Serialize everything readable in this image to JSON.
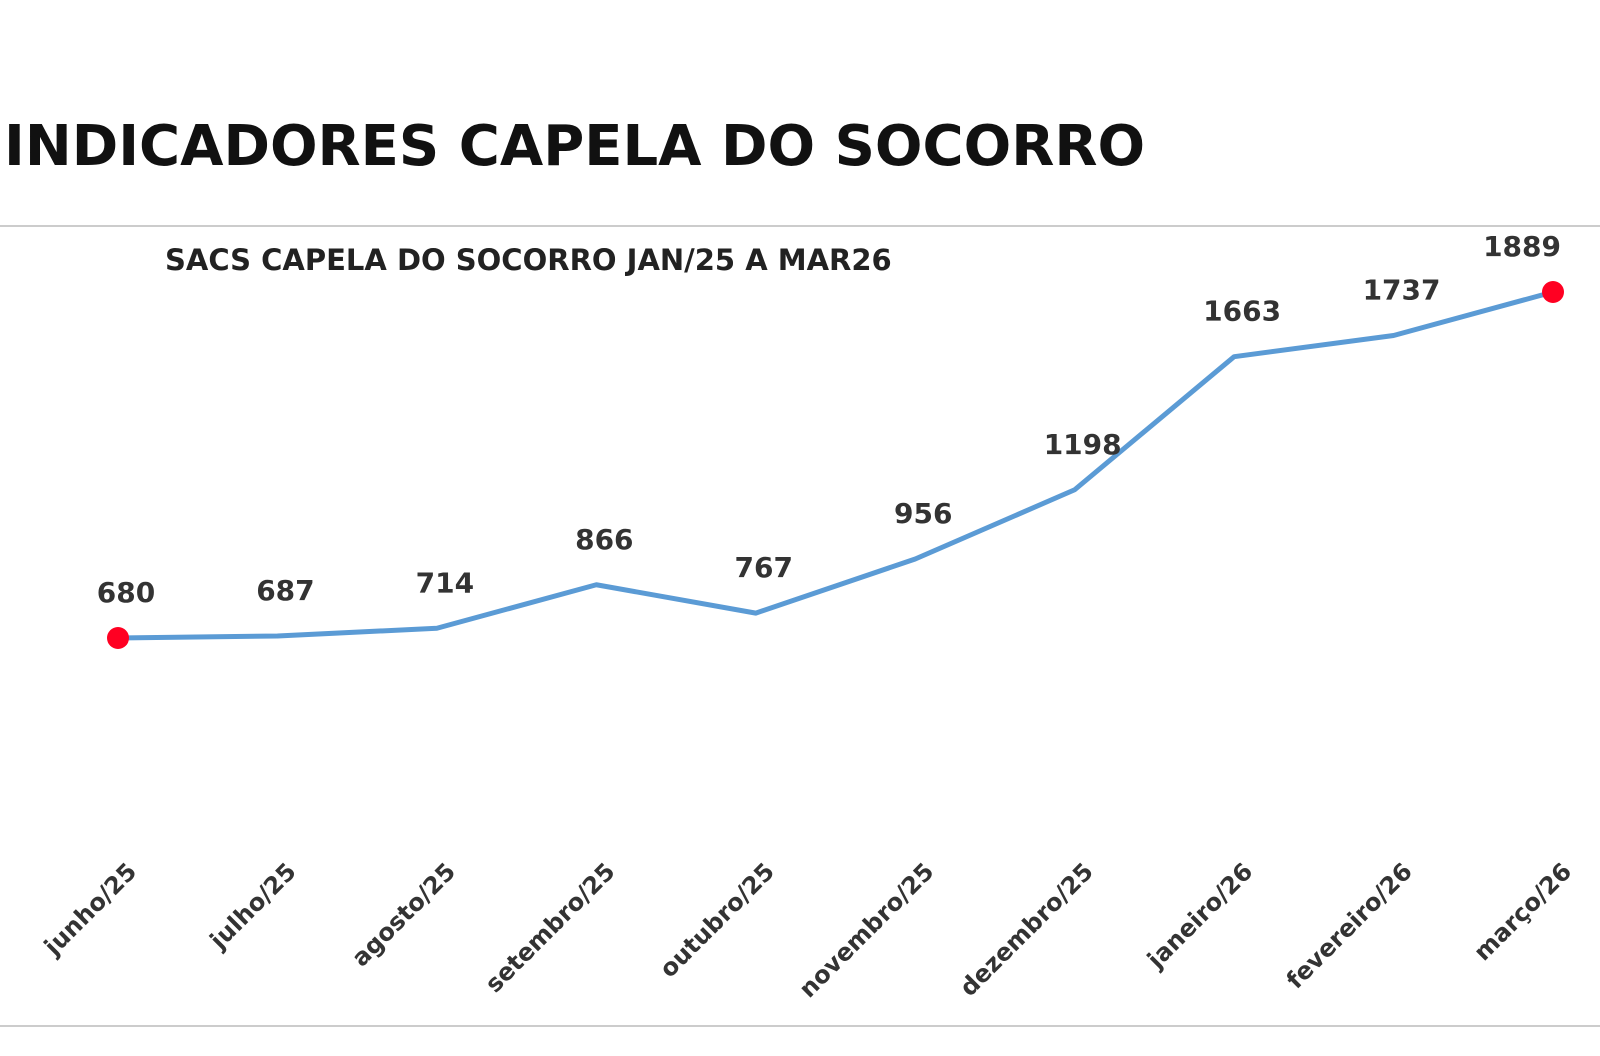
{
  "header": {
    "title": "INDICADORES CAPELA DO SOCORRO"
  },
  "chart_data": {
    "type": "line",
    "title": "SACS CAPELA DO SOCORRO JAN/25 A MAR26",
    "categories": [
      "junho/25",
      "julho/25",
      "agosto/25",
      "setembro/25",
      "outubro/25",
      "novembro/25",
      "dezembro/25",
      "janeiro/26",
      "fevereiro/26",
      "março/26"
    ],
    "values": [
      680,
      687,
      714,
      866,
      767,
      956,
      1198,
      1663,
      1737,
      1889
    ],
    "color": "#5b9bd5",
    "marker_color": "#ff0022"
  }
}
